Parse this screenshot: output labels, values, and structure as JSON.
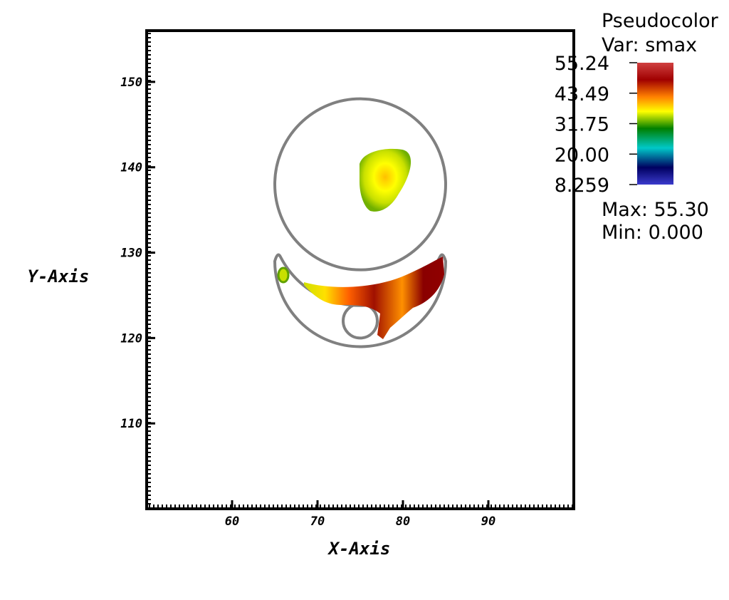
{
  "legend": {
    "title": "Pseudocolor",
    "var_label": "Var: smax",
    "tick_labels": [
      "55.24",
      "43.49",
      "31.75",
      "20.00",
      "8.259"
    ],
    "max_label": "Max:  55.30",
    "min_label": "Min:  0.000",
    "colors": [
      "#3b3bcc",
      "#000060",
      "#00c8c8",
      "#008000",
      "#ffff00",
      "#ff8000",
      "#a00000",
      "#d04040"
    ]
  },
  "chart_data": {
    "type": "heatmap",
    "xlabel": "X-Axis",
    "ylabel": "Y-Axis",
    "xlim": [
      50,
      100
    ],
    "ylim": [
      100,
      156
    ],
    "x_ticks": [
      "60",
      "70",
      "80",
      "90"
    ],
    "y_ticks": [
      "110",
      "120",
      "130",
      "140",
      "150"
    ],
    "variable": "smax",
    "value_range": [
      0.0,
      55.3
    ],
    "legend_range": [
      8.259,
      55.24
    ],
    "outlines": {
      "upper_circle": {
        "center": [
          75,
          138
        ],
        "radius": 10.0
      },
      "small_circle": {
        "center": [
          75,
          122
        ],
        "radius": 2.0
      },
      "crescent_outer": {
        "center": [
          75,
          128
        ],
        "radius": 10.0
      },
      "crescent_inner": {
        "center": [
          75,
          138
        ],
        "radius": 10.5
      }
    },
    "regions": [
      {
        "name": "upper blob",
        "center": [
          77.5,
          138.5
        ],
        "approx_peak": 34
      },
      {
        "name": "small left patch",
        "center": [
          66.3,
          127.5
        ],
        "approx_peak": 28
      },
      {
        "name": "crescent band",
        "from": [
          69,
          126
        ],
        "to": [
          84.5,
          128.5
        ],
        "approx_peak": 55.3
      }
    ]
  }
}
